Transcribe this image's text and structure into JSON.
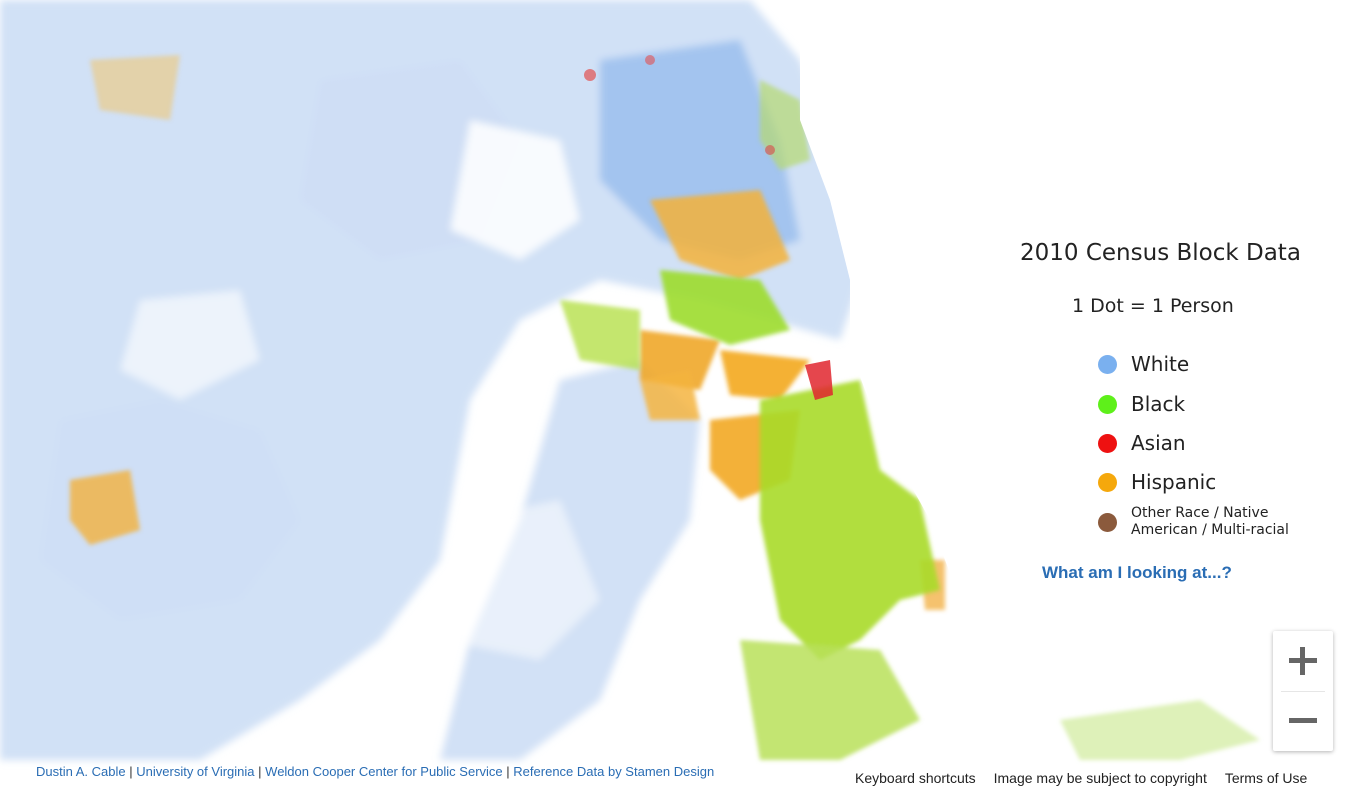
{
  "legend": {
    "title": "2010 Census Block Data",
    "subtitle": "1 Dot = 1 Person",
    "items": [
      {
        "label": "White",
        "color": "#7ab0ef"
      },
      {
        "label": "Black",
        "color": "#5ef01a"
      },
      {
        "label": "Asian",
        "color": "#ee1111"
      },
      {
        "label": "Hispanic",
        "color": "#f5a80c"
      },
      {
        "label": "Other Race / Native American / Multi-racial",
        "color": "#8b5a3c"
      }
    ]
  },
  "help_link": "What am I looking at...?",
  "attribution": {
    "author": "Dustin A. Cable",
    "university": "University of Virginia",
    "center": "Weldon Cooper Center for Public Service",
    "reference": "Reference Data by Stamen Design",
    "separator": "|"
  },
  "footer": {
    "keyboard": "Keyboard shortcuts",
    "copyright": "Image may be subject to copyright",
    "terms": "Terms of Use"
  },
  "zoom": {
    "in_icon": "plus-icon",
    "out_icon": "minus-icon"
  }
}
